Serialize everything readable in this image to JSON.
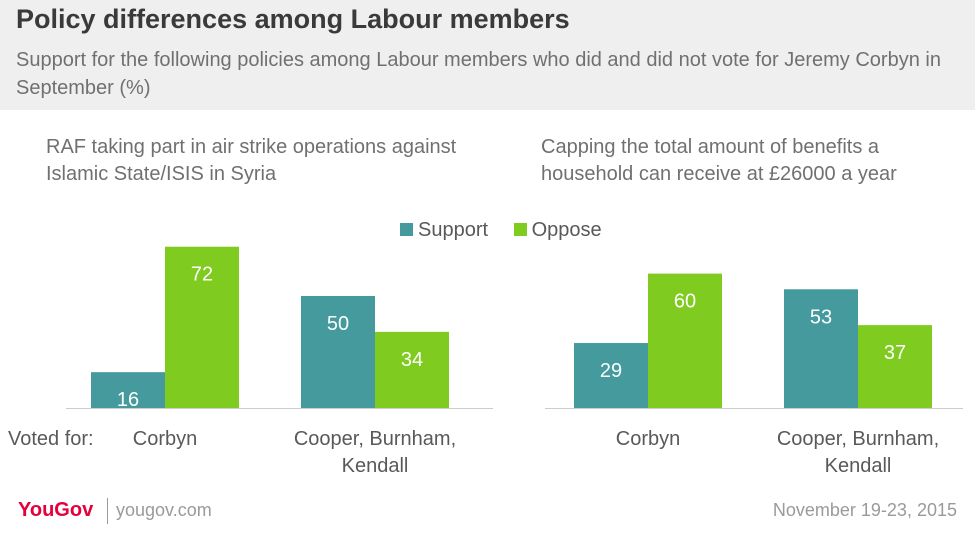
{
  "title": "Policy differences among Labour members",
  "subtitle": "Support for the following policies among Labour members who did and did not vote for Jeremy Corbyn in September (%)",
  "legend": [
    {
      "label": "Support",
      "color": "#449a9c"
    },
    {
      "label": "Oppose",
      "color": "#7fcb1f"
    }
  ],
  "category_prefix": "Voted for:",
  "chart_data": [
    {
      "type": "bar",
      "title": "RAF taking part in air strike operations against Islamic State/ISIS in Syria",
      "categories": [
        "Corbyn",
        "Cooper, Burnham, Kendall"
      ],
      "series": [
        {
          "name": "Support",
          "values": [
            16,
            50
          ],
          "color": "#449a9c"
        },
        {
          "name": "Oppose",
          "values": [
            72,
            34
          ],
          "color": "#7fcb1f"
        }
      ],
      "ylim": [
        0,
        100
      ]
    },
    {
      "type": "bar",
      "title": "Capping the total amount of benefits a household can receive at £26000 a year",
      "categories": [
        "Corbyn",
        "Cooper, Burnham, Kendall"
      ],
      "series": [
        {
          "name": "Support",
          "values": [
            29,
            53
          ],
          "color": "#449a9c"
        },
        {
          "name": "Oppose",
          "values": [
            60,
            37
          ],
          "color": "#7fcb1f"
        }
      ],
      "ylim": [
        0,
        100
      ]
    }
  ],
  "footer": {
    "logo": "YouGov",
    "site": "yougov.com",
    "date": "November 19-23, 2015"
  }
}
